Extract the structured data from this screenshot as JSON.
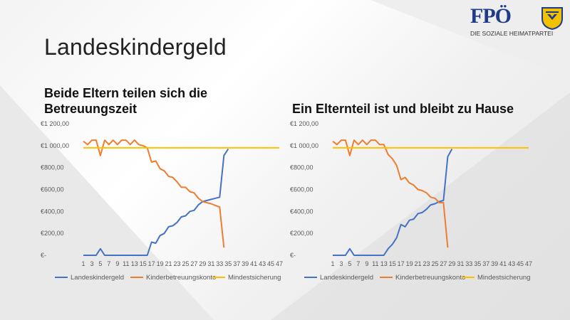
{
  "slide": {
    "title": "Landeskindergeld"
  },
  "logo": {
    "word": "FPÖ",
    "tagline": "DIE SOZIALE HEIMATPARTEI"
  },
  "colors": {
    "landeskindergeld": "#4472C4",
    "kinderbetreuungskonto": "#ED7D31",
    "mindestsicherung": "#FFC000"
  },
  "chart_data": [
    {
      "type": "line",
      "title": "Beide Eltern teilen sich die Betreuungszeit",
      "y_ticks": [
        "€1 200,00",
        "€1 000,00",
        "€800,00",
        "€600,00",
        "€400,00",
        "€200,00",
        "€-"
      ],
      "ylim": [
        0,
        1200
      ],
      "x_tick_labels": [
        "1",
        "3",
        "5",
        "7",
        "9",
        "11",
        "13",
        "15",
        "17",
        "19",
        "21",
        "23",
        "25",
        "27",
        "29",
        "31",
        "33",
        "35",
        "37",
        "39",
        "41",
        "43",
        "45",
        "47"
      ],
      "x": [
        1,
        2,
        3,
        4,
        5,
        6,
        7,
        8,
        9,
        10,
        11,
        12,
        13,
        14,
        15,
        16,
        17,
        18,
        19,
        20,
        21,
        22,
        23,
        24,
        25,
        26,
        27,
        28,
        29,
        30,
        31,
        32,
        33,
        34,
        35,
        36,
        37,
        38,
        39,
        40,
        41,
        42,
        43,
        44,
        45,
        46,
        47
      ],
      "legend_position": "bottom",
      "series": [
        {
          "name": "Landeskindergeld",
          "color_key": "landeskindergeld",
          "values": [
            0,
            0,
            0,
            0,
            60,
            0,
            0,
            0,
            0,
            0,
            0,
            0,
            0,
            0,
            0,
            0,
            120,
            110,
            180,
            200,
            260,
            270,
            300,
            350,
            360,
            400,
            410,
            460,
            490,
            500,
            510,
            520,
            530,
            910,
            970,
            null,
            null,
            null,
            null,
            null,
            null,
            null,
            null,
            null,
            null,
            null,
            null
          ]
        },
        {
          "name": "Kinderbetreuungskonto",
          "color_key": "kinderbetreuungskonto",
          "values": [
            1040,
            1010,
            1050,
            1050,
            910,
            1050,
            1010,
            1050,
            1010,
            1050,
            1050,
            1010,
            1050,
            1010,
            1000,
            980,
            850,
            860,
            790,
            770,
            720,
            710,
            670,
            620,
            620,
            580,
            570,
            520,
            490,
            480,
            470,
            455,
            440,
            70,
            null,
            null,
            null,
            null,
            null,
            null,
            null,
            null,
            null,
            null,
            null,
            null,
            null
          ]
        },
        {
          "name": "Mindestsicherung",
          "color_key": "mindestsicherung",
          "values": [
            980,
            980,
            980,
            980,
            980,
            980,
            980,
            980,
            980,
            980,
            980,
            980,
            980,
            980,
            980,
            980,
            980,
            980,
            980,
            980,
            980,
            980,
            980,
            980,
            980,
            980,
            980,
            980,
            980,
            980,
            980,
            980,
            980,
            980,
            980,
            980,
            980,
            980,
            980,
            980,
            980,
            980,
            980,
            980,
            980,
            980,
            980
          ]
        }
      ]
    },
    {
      "type": "line",
      "title": "Ein Elternteil ist und bleibt zu Hause",
      "y_ticks": [
        "€1 200,00",
        "€1 000,00",
        "€800,00",
        "€600,00",
        "€400,00",
        "€200,00",
        "€-"
      ],
      "ylim": [
        0,
        1200
      ],
      "x_tick_labels": [
        "1",
        "3",
        "5",
        "7",
        "9",
        "11",
        "13",
        "15",
        "17",
        "19",
        "21",
        "23",
        "25",
        "27",
        "29",
        "31",
        "33",
        "35",
        "37",
        "39",
        "41",
        "43",
        "45",
        "47"
      ],
      "x": [
        1,
        2,
        3,
        4,
        5,
        6,
        7,
        8,
        9,
        10,
        11,
        12,
        13,
        14,
        15,
        16,
        17,
        18,
        19,
        20,
        21,
        22,
        23,
        24,
        25,
        26,
        27,
        28,
        29,
        30,
        31,
        32,
        33,
        34,
        35,
        36,
        37,
        38,
        39,
        40,
        41,
        42,
        43,
        44,
        45,
        46,
        47
      ],
      "legend_position": "bottom",
      "series": [
        {
          "name": "Landeskindergeld",
          "color_key": "landeskindergeld",
          "values": [
            0,
            0,
            0,
            0,
            60,
            0,
            0,
            0,
            0,
            0,
            0,
            0,
            0,
            60,
            100,
            160,
            280,
            260,
            320,
            330,
            380,
            390,
            420,
            460,
            470,
            490,
            500,
            900,
            970,
            null,
            null,
            null,
            null,
            null,
            null,
            null,
            null,
            null,
            null,
            null,
            null,
            null,
            null,
            null,
            null,
            null,
            null
          ]
        },
        {
          "name": "Kinderbetreuungskonto",
          "color_key": "kinderbetreuungskonto",
          "values": [
            1040,
            1010,
            1050,
            1050,
            910,
            1050,
            1010,
            1050,
            1010,
            1050,
            1050,
            1010,
            1010,
            920,
            880,
            820,
            690,
            710,
            660,
            640,
            600,
            590,
            570,
            530,
            520,
            480,
            480,
            70,
            null,
            null,
            null,
            null,
            null,
            null,
            null,
            null,
            null,
            null,
            null,
            null,
            null,
            null,
            null,
            null,
            null,
            null,
            null
          ]
        },
        {
          "name": "Mindestsicherung",
          "color_key": "mindestsicherung",
          "values": [
            980,
            980,
            980,
            980,
            980,
            980,
            980,
            980,
            980,
            980,
            980,
            980,
            980,
            980,
            980,
            980,
            980,
            980,
            980,
            980,
            980,
            980,
            980,
            980,
            980,
            980,
            980,
            980,
            980,
            980,
            980,
            980,
            980,
            980,
            980,
            980,
            980,
            980,
            980,
            980,
            980,
            980,
            980,
            980,
            980,
            980,
            980
          ]
        }
      ]
    }
  ]
}
